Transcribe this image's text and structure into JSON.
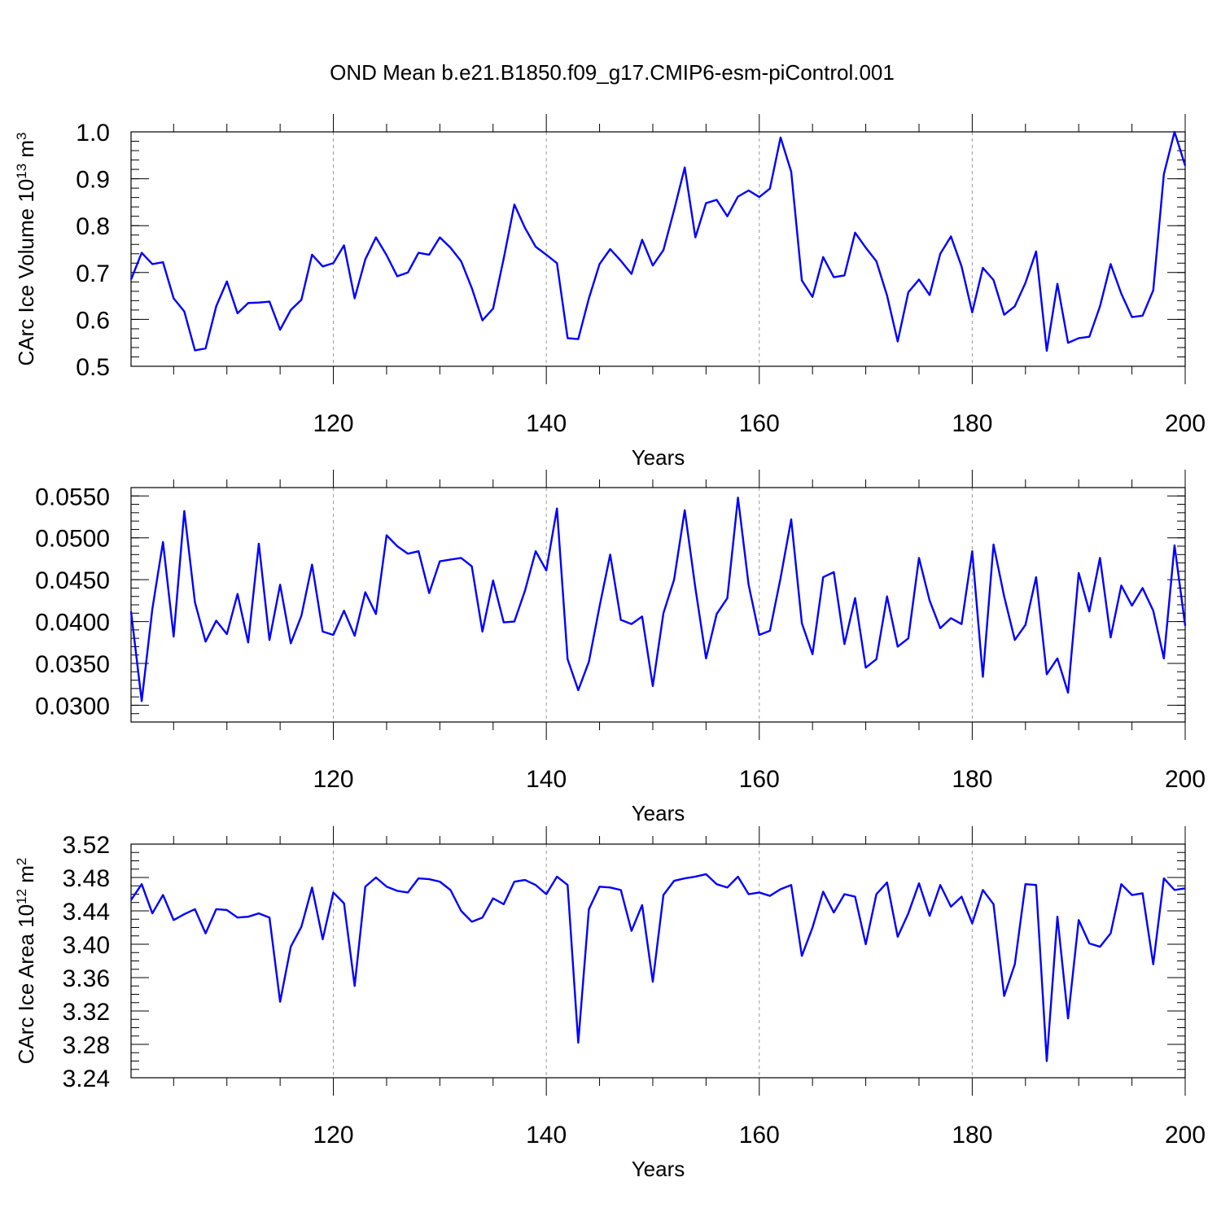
{
  "title": "OND Mean b.e21.B1850.f09_g17.CMIP6-esm-piControl.001",
  "series_color": "#0000ff",
  "chart_data": [
    {
      "type": "line",
      "xlabel": "Years",
      "ylabel": {
        "text": "CArc Ice Volume 10",
        "exp": "13",
        "unit": " m",
        "unit_exp": "3"
      },
      "xlim": [
        101,
        200
      ],
      "ylim": [
        0.5,
        1.0
      ],
      "xticks": [
        120,
        140,
        160,
        180,
        200
      ],
      "yticks": [
        0.5,
        0.6,
        0.7,
        0.8,
        0.9,
        1.0
      ],
      "ytick_labels": [
        "0.5",
        "0.6",
        "0.7",
        "0.8",
        "0.9",
        "1.0"
      ],
      "y_minor_step": 0.02,
      "x": [
        101,
        102,
        103,
        104,
        105,
        106,
        107,
        108,
        109,
        110,
        111,
        112,
        113,
        114,
        115,
        116,
        117,
        118,
        119,
        120,
        121,
        122,
        123,
        124,
        125,
        126,
        127,
        128,
        129,
        130,
        131,
        132,
        133,
        134,
        135,
        136,
        137,
        138,
        139,
        140,
        141,
        142,
        143,
        144,
        145,
        146,
        147,
        148,
        149,
        150,
        151,
        152,
        153,
        154,
        155,
        156,
        157,
        158,
        159,
        160,
        161,
        162,
        163,
        164,
        165,
        166,
        167,
        168,
        169,
        170,
        171,
        172,
        173,
        174,
        175,
        176,
        177,
        178,
        179,
        180,
        181,
        182,
        183,
        184,
        185,
        186,
        187,
        188,
        189,
        190,
        191,
        192,
        193,
        194,
        195,
        196,
        197,
        198,
        199,
        200
      ],
      "values": [
        0.685,
        0.742,
        0.718,
        0.722,
        0.645,
        0.617,
        0.534,
        0.538,
        0.628,
        0.681,
        0.613,
        0.635,
        0.636,
        0.638,
        0.578,
        0.62,
        0.642,
        0.738,
        0.713,
        0.72,
        0.758,
        0.645,
        0.728,
        0.775,
        0.737,
        0.692,
        0.7,
        0.742,
        0.738,
        0.775,
        0.753,
        0.724,
        0.667,
        0.598,
        0.623,
        0.73,
        0.845,
        0.795,
        0.755,
        0.738,
        0.72,
        0.56,
        0.558,
        0.645,
        0.718,
        0.75,
        0.725,
        0.697,
        0.77,
        0.715,
        0.748,
        0.833,
        0.924,
        0.775,
        0.848,
        0.855,
        0.82,
        0.862,
        0.875,
        0.861,
        0.879,
        0.988,
        0.915,
        0.683,
        0.648,
        0.733,
        0.69,
        0.694,
        0.785,
        0.753,
        0.724,
        0.651,
        0.553,
        0.658,
        0.685,
        0.652,
        0.74,
        0.777,
        0.713,
        0.615,
        0.71,
        0.684,
        0.61,
        0.628,
        0.678,
        0.745,
        0.533,
        0.676,
        0.55,
        0.56,
        0.563,
        0.628,
        0.718,
        0.655,
        0.605,
        0.608,
        0.662,
        0.91,
        1.0,
        0.928
      ]
    },
    {
      "type": "line",
      "xlabel": "Years",
      "ylabel": {
        "text": "",
        "exp": "",
        "unit": "",
        "unit_exp": ""
      },
      "xlim": [
        101,
        200
      ],
      "ylim": [
        0.028,
        0.056
      ],
      "xticks": [
        120,
        140,
        160,
        180,
        200
      ],
      "yticks": [
        0.03,
        0.035,
        0.04,
        0.045,
        0.05,
        0.055
      ],
      "ytick_labels": [
        "0.0300",
        "0.0350",
        "0.0400",
        "0.0450",
        "0.0500",
        "0.0550"
      ],
      "y_minor_step": 0.001,
      "x": [
        101,
        102,
        103,
        104,
        105,
        106,
        107,
        108,
        109,
        110,
        111,
        112,
        113,
        114,
        115,
        116,
        117,
        118,
        119,
        120,
        121,
        122,
        123,
        124,
        125,
        126,
        127,
        128,
        129,
        130,
        131,
        132,
        133,
        134,
        135,
        136,
        137,
        138,
        139,
        140,
        141,
        142,
        143,
        144,
        145,
        146,
        147,
        148,
        149,
        150,
        151,
        152,
        153,
        154,
        155,
        156,
        157,
        158,
        159,
        160,
        161,
        162,
        163,
        164,
        165,
        166,
        167,
        168,
        169,
        170,
        171,
        172,
        173,
        174,
        175,
        176,
        177,
        178,
        179,
        180,
        181,
        182,
        183,
        184,
        185,
        186,
        187,
        188,
        189,
        190,
        191,
        192,
        193,
        194,
        195,
        196,
        197,
        198,
        199,
        200
      ],
      "values": [
        0.0412,
        0.0305,
        0.0415,
        0.0495,
        0.0382,
        0.0532,
        0.0423,
        0.0376,
        0.0401,
        0.0385,
        0.0433,
        0.0375,
        0.0493,
        0.0378,
        0.0444,
        0.0374,
        0.0407,
        0.0468,
        0.0388,
        0.0384,
        0.0413,
        0.0383,
        0.0435,
        0.0409,
        0.0503,
        0.049,
        0.0481,
        0.0484,
        0.0434,
        0.0472,
        0.0474,
        0.0476,
        0.0466,
        0.0388,
        0.0449,
        0.0399,
        0.04,
        0.0437,
        0.0484,
        0.0461,
        0.0535,
        0.0355,
        0.0318,
        0.0352,
        0.0418,
        0.048,
        0.0402,
        0.0397,
        0.0406,
        0.0323,
        0.041,
        0.045,
        0.0533,
        0.044,
        0.0356,
        0.0409,
        0.0428,
        0.0548,
        0.0444,
        0.0384,
        0.0389,
        0.0452,
        0.0522,
        0.0398,
        0.0361,
        0.0453,
        0.0459,
        0.0373,
        0.0428,
        0.0345,
        0.0355,
        0.043,
        0.037,
        0.038,
        0.0476,
        0.0425,
        0.0392,
        0.0404,
        0.0397,
        0.0484,
        0.0334,
        0.0492,
        0.043,
        0.0378,
        0.0396,
        0.0453,
        0.0337,
        0.0356,
        0.0315,
        0.0458,
        0.0412,
        0.0476,
        0.0381,
        0.0443,
        0.0419,
        0.044,
        0.0413,
        0.0356,
        0.0491,
        0.0395
      ]
    },
    {
      "type": "line",
      "xlabel": "Years",
      "ylabel": {
        "text": "CArc Ice Area 10",
        "exp": "12",
        "unit": " m",
        "unit_exp": "2"
      },
      "xlim": [
        101,
        200
      ],
      "ylim": [
        3.24,
        3.52
      ],
      "xticks": [
        120,
        140,
        160,
        180,
        200
      ],
      "yticks": [
        3.24,
        3.28,
        3.32,
        3.36,
        3.4,
        3.44,
        3.48,
        3.52
      ],
      "ytick_labels": [
        "3.24",
        "3.28",
        "3.32",
        "3.36",
        "3.40",
        "3.44",
        "3.48",
        "3.52"
      ],
      "y_minor_step": 0.01,
      "x": [
        101,
        102,
        103,
        104,
        105,
        106,
        107,
        108,
        109,
        110,
        111,
        112,
        113,
        114,
        115,
        116,
        117,
        118,
        119,
        120,
        121,
        122,
        123,
        124,
        125,
        126,
        127,
        128,
        129,
        130,
        131,
        132,
        133,
        134,
        135,
        136,
        137,
        138,
        139,
        140,
        141,
        142,
        143,
        144,
        145,
        146,
        147,
        148,
        149,
        150,
        151,
        152,
        153,
        154,
        155,
        156,
        157,
        158,
        159,
        160,
        161,
        162,
        163,
        164,
        165,
        166,
        167,
        168,
        169,
        170,
        171,
        172,
        173,
        174,
        175,
        176,
        177,
        178,
        179,
        180,
        181,
        182,
        183,
        184,
        185,
        186,
        187,
        188,
        189,
        190,
        191,
        192,
        193,
        194,
        195,
        196,
        197,
        198,
        199,
        200
      ],
      "values": [
        3.453,
        3.472,
        3.437,
        3.459,
        3.429,
        3.436,
        3.442,
        3.413,
        3.442,
        3.441,
        3.432,
        3.433,
        3.437,
        3.432,
        3.331,
        3.397,
        3.421,
        3.468,
        3.406,
        3.462,
        3.449,
        3.35,
        3.469,
        3.48,
        3.469,
        3.464,
        3.462,
        3.479,
        3.478,
        3.475,
        3.465,
        3.44,
        3.427,
        3.432,
        3.455,
        3.448,
        3.475,
        3.477,
        3.471,
        3.46,
        3.481,
        3.471,
        3.282,
        3.442,
        3.469,
        3.468,
        3.465,
        3.416,
        3.447,
        3.355,
        3.459,
        3.476,
        3.479,
        3.481,
        3.484,
        3.472,
        3.468,
        3.481,
        3.46,
        3.462,
        3.458,
        3.466,
        3.471,
        3.386,
        3.42,
        3.463,
        3.438,
        3.46,
        3.457,
        3.4,
        3.46,
        3.474,
        3.409,
        3.437,
        3.473,
        3.434,
        3.471,
        3.445,
        3.457,
        3.425,
        3.465,
        3.448,
        3.338,
        3.376,
        3.472,
        3.471,
        3.26,
        3.433,
        3.311,
        3.429,
        3.401,
        3.397,
        3.413,
        3.472,
        3.459,
        3.461,
        3.376,
        3.479,
        3.465,
        3.467
      ]
    }
  ]
}
